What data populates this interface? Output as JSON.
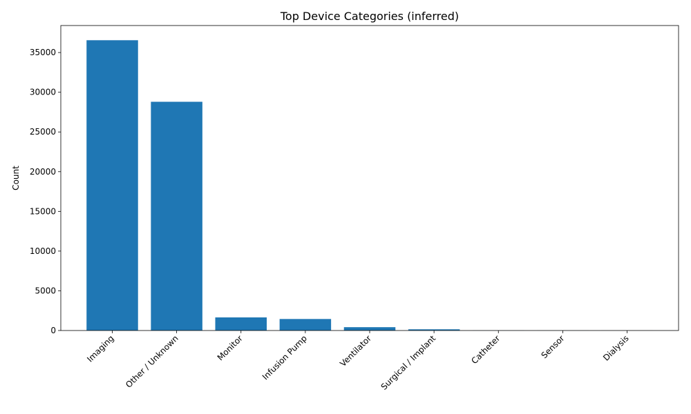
{
  "chart_data": {
    "type": "bar",
    "title": "Top Device Categories (inferred)",
    "xlabel": "",
    "ylabel": "Count",
    "categories": [
      "Imaging",
      "Other / Unknown",
      "Monitor",
      "Infusion Pump",
      "Ventilator",
      "Surgical / Implant",
      "Catheter",
      "Sensor",
      "Dialysis"
    ],
    "values": [
      36550,
      28800,
      1650,
      1450,
      420,
      150,
      10,
      5,
      3
    ],
    "ylim": [
      0,
      38400
    ],
    "yticks": [
      0,
      5000,
      10000,
      15000,
      20000,
      25000,
      30000,
      35000
    ],
    "bar_color": "#1f77b4",
    "grid": false,
    "legend": "none"
  }
}
